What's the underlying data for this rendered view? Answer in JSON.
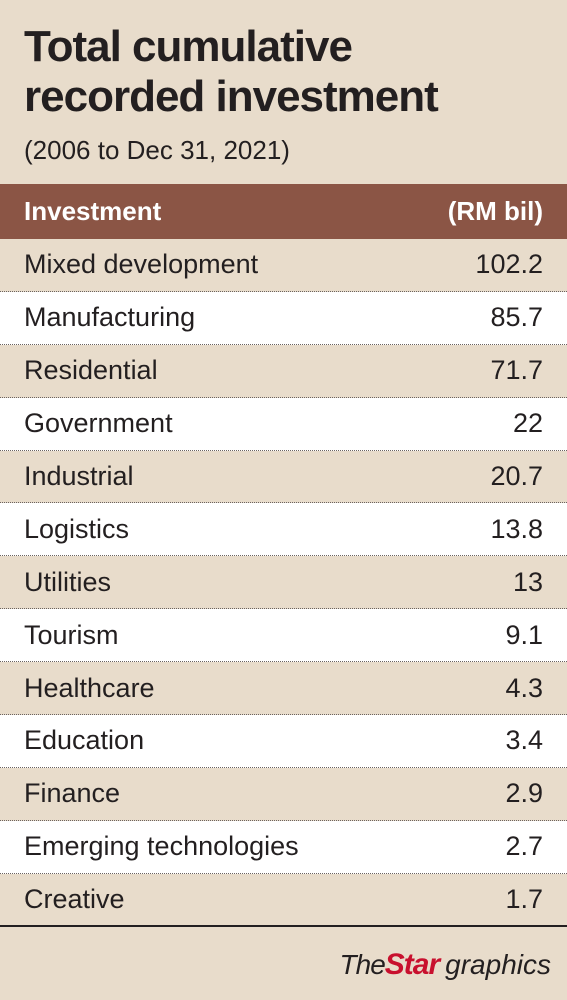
{
  "title_line1": "Total cumulative",
  "title_line2": "recorded investment",
  "subtitle": "(2006 to Dec 31, 2021)",
  "columns": [
    "Investment",
    "(RM bil)"
  ],
  "colors": {
    "background": "#e8dccb",
    "header": "#8b5545",
    "alt_row": "#ffffff",
    "brand_red": "#c8102e"
  },
  "chart_data": {
    "type": "table",
    "title": "Total cumulative recorded investment",
    "subtitle": "(2006 to Dec 31, 2021)",
    "columns": [
      "Investment",
      "(RM bil)"
    ],
    "rows": [
      {
        "category": "Mixed development",
        "value": "102.2"
      },
      {
        "category": "Manufacturing",
        "value": "85.7"
      },
      {
        "category": "Residential",
        "value": "71.7"
      },
      {
        "category": "Government",
        "value": "22"
      },
      {
        "category": "Industrial",
        "value": "20.7"
      },
      {
        "category": "Logistics",
        "value": "13.8"
      },
      {
        "category": "Utilities",
        "value": "13"
      },
      {
        "category": "Tourism",
        "value": "9.1"
      },
      {
        "category": "Healthcare",
        "value": "4.3"
      },
      {
        "category": "Education",
        "value": "3.4"
      },
      {
        "category": "Finance",
        "value": "2.9"
      },
      {
        "category": "Emerging technologies",
        "value": "2.7"
      },
      {
        "category": "Creative",
        "value": "1.7"
      }
    ]
  },
  "credit": {
    "the": "The",
    "star": "Star",
    "graphics": "graphics"
  }
}
